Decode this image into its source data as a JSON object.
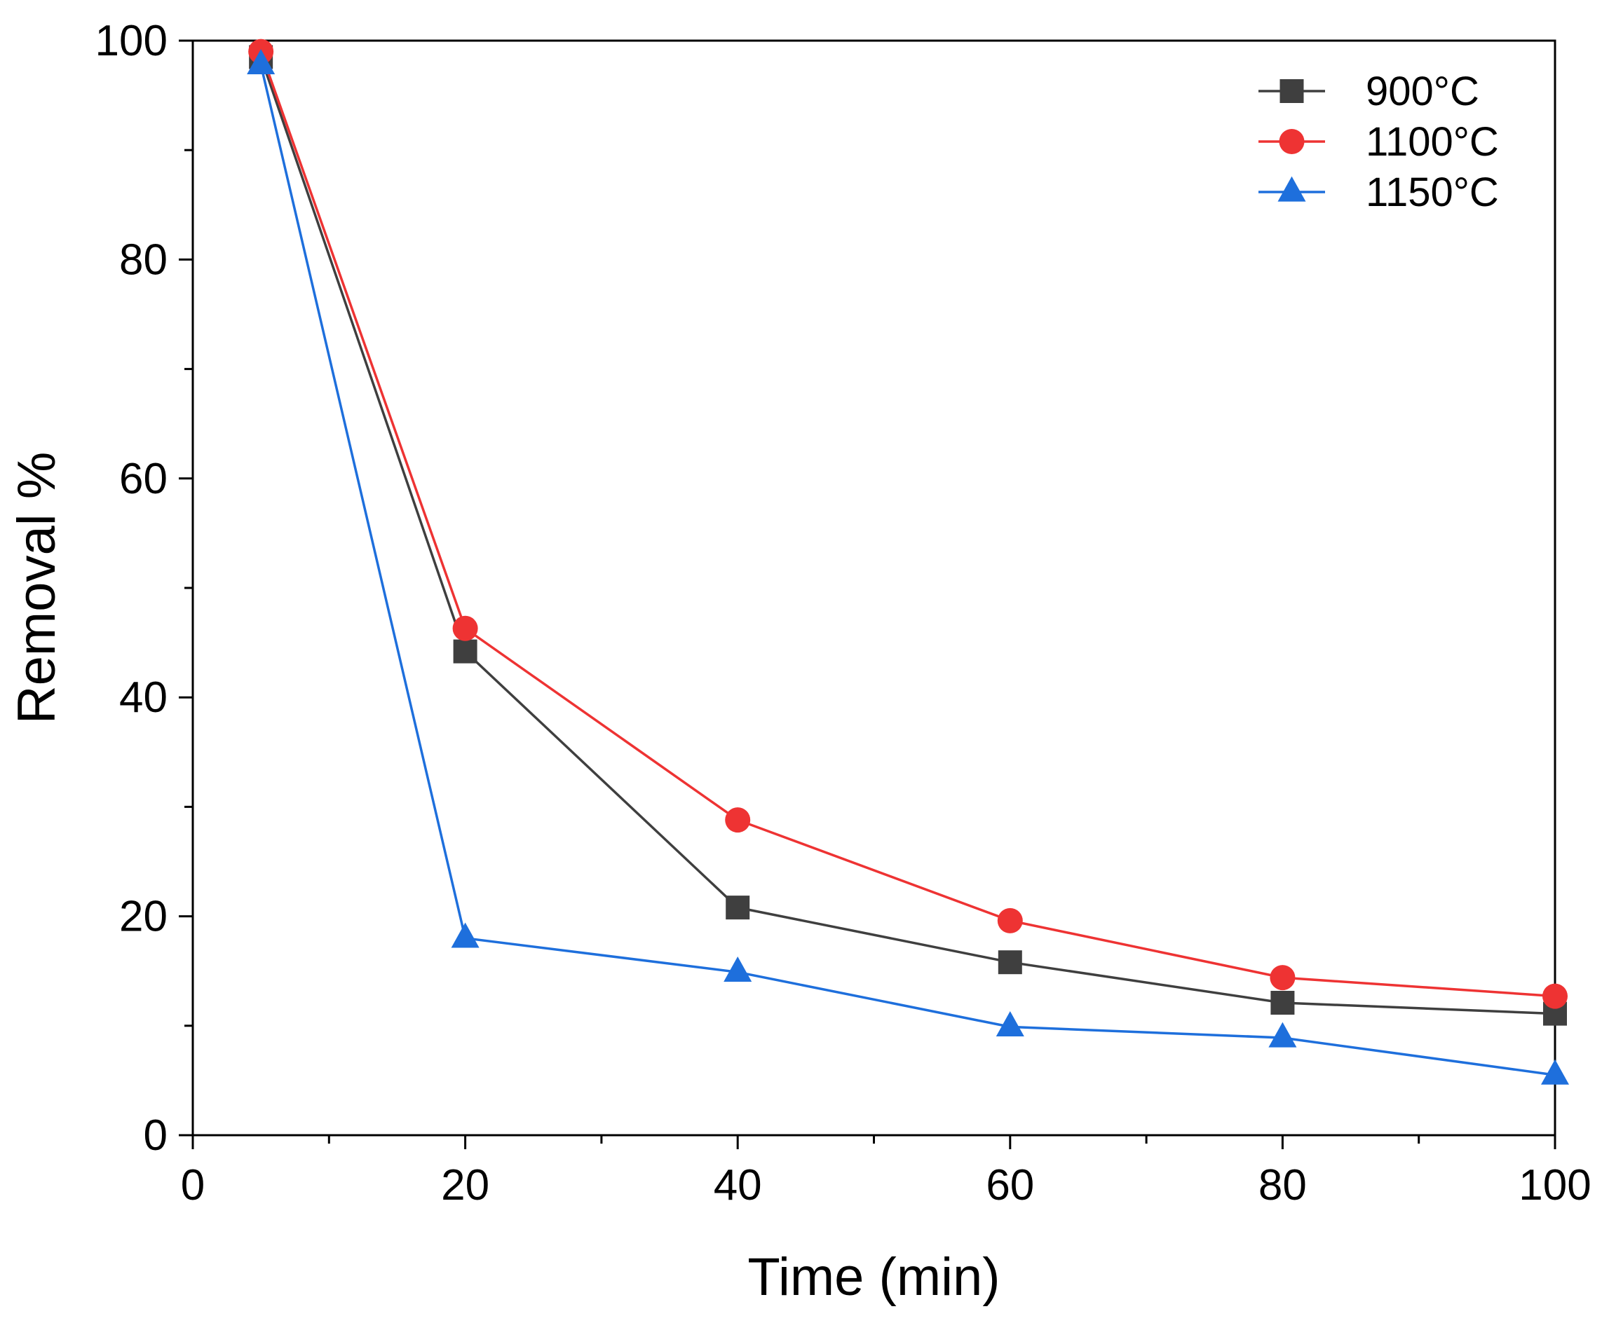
{
  "chart_data": {
    "type": "line",
    "title": "",
    "xlabel": "Time (min)",
    "ylabel": "Removal %",
    "xlim": [
      0,
      100
    ],
    "ylim": [
      0,
      100
    ],
    "xticks": [
      0,
      20,
      40,
      60,
      80,
      100
    ],
    "yticks": [
      0,
      20,
      40,
      60,
      80,
      100
    ],
    "x_minor_ticks": [
      10,
      30,
      50,
      70,
      90
    ],
    "y_minor_ticks": [
      10,
      30,
      50,
      70,
      90
    ],
    "grid": false,
    "legend_position": "top-right",
    "series": [
      {
        "name": "900°C",
        "color": "#3f3f3f",
        "marker": "square",
        "points": [
          {
            "x": 5,
            "y": 98.5
          },
          {
            "x": 20,
            "y": 44.2
          },
          {
            "x": 40,
            "y": 20.8
          },
          {
            "x": 60,
            "y": 15.8
          },
          {
            "x": 80,
            "y": 12.1
          },
          {
            "x": 100,
            "y": 11.1
          }
        ]
      },
      {
        "name": "1100°C",
        "color": "#ee3333",
        "marker": "circle",
        "points": [
          {
            "x": 5,
            "y": 99
          },
          {
            "x": 20,
            "y": 46.3
          },
          {
            "x": 40,
            "y": 28.8
          },
          {
            "x": 60,
            "y": 19.6
          },
          {
            "x": 80,
            "y": 14.4
          },
          {
            "x": 100,
            "y": 12.7
          }
        ]
      },
      {
        "name": "1150°C",
        "color": "#1e6fdc",
        "marker": "triangle",
        "points": [
          {
            "x": 5,
            "y": 97.8
          },
          {
            "x": 20,
            "y": 18
          },
          {
            "x": 40,
            "y": 14.9
          },
          {
            "x": 60,
            "y": 9.9
          },
          {
            "x": 80,
            "y": 8.9
          },
          {
            "x": 100,
            "y": 5.5
          }
        ]
      }
    ]
  }
}
